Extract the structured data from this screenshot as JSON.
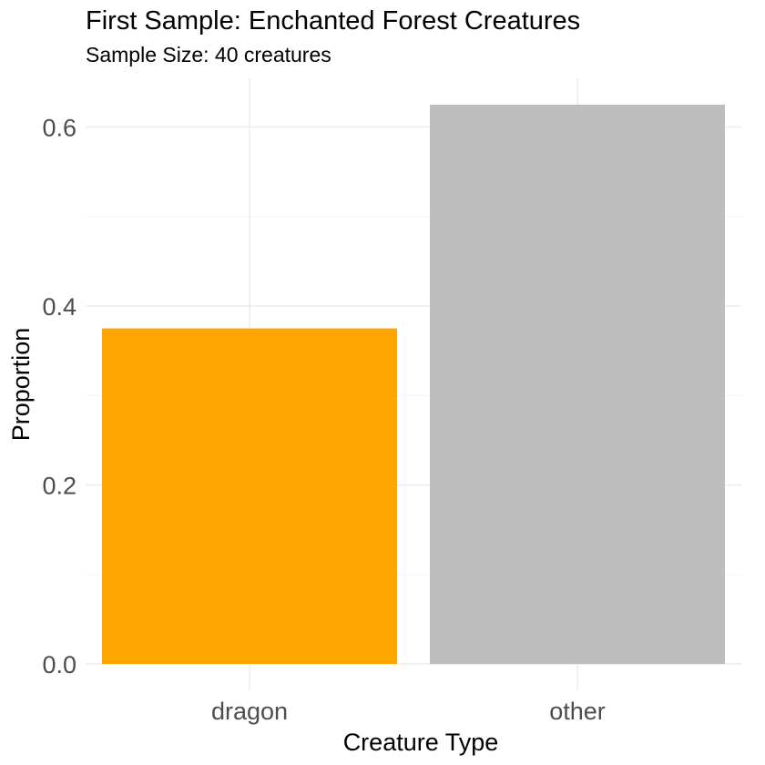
{
  "chart_data": {
    "type": "bar",
    "title": "First Sample: Enchanted Forest Creatures",
    "subtitle": "Sample Size: 40 creatures",
    "xlabel": "Creature Type",
    "ylabel": "Proportion",
    "categories": [
      "dragon",
      "other"
    ],
    "values": [
      0.375,
      0.625
    ],
    "colors": [
      "#FFA500",
      "#BEBEBE"
    ],
    "ylim": [
      0,
      0.65
    ],
    "yticks": [
      0.0,
      0.2,
      0.4,
      0.6
    ],
    "ytick_labels": [
      "0.0",
      "0.2",
      "0.4",
      "0.6"
    ],
    "yminor": [
      0.1,
      0.3,
      0.5
    ],
    "grid": true,
    "legend": "none"
  }
}
